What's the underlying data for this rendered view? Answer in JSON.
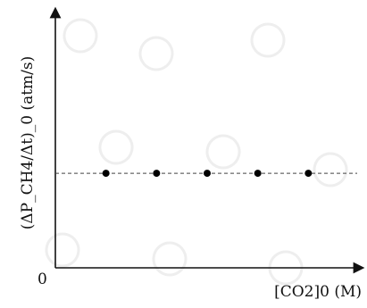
{
  "chart_data": {
    "type": "scatter",
    "title": "",
    "xlabel": "[CO2]0 (M)",
    "ylabel": "(ΔP_CH4/Δt)_0 (atm/s)",
    "origin_label": "0",
    "x": [
      1,
      2,
      3,
      4,
      5
    ],
    "y": [
      1,
      1,
      1,
      1,
      1
    ],
    "xlim": [
      0,
      6
    ],
    "ylim": [
      0,
      2.7
    ],
    "reference_line": {
      "y": 1,
      "style": "dashed"
    },
    "grid": false,
    "legend": "none"
  },
  "colors": {
    "axis": "#111111",
    "points": "#000000",
    "dashed_line": "#444444",
    "watermark": "#c9c9c9"
  }
}
